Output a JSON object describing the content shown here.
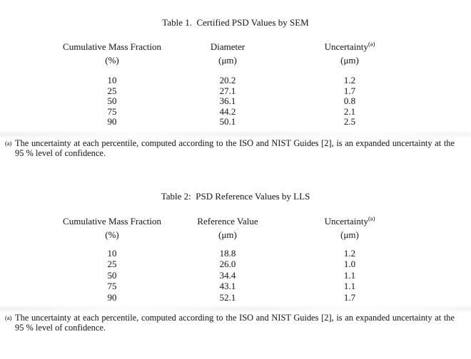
{
  "document": {
    "background": "#ffffff",
    "text_color": "#2b2b2b"
  },
  "tables": [
    {
      "title": "Table 1.  Certified PSD Values by SEM",
      "columns": [
        {
          "label": "Cumulative Mass Fraction",
          "sup": "",
          "unit": "(%)"
        },
        {
          "label": "Diameter",
          "sup": "",
          "unit": "(μm)"
        },
        {
          "label": "Uncertainty",
          "sup": "(a)",
          "unit": "(μm)"
        }
      ],
      "rows": [
        [
          "10",
          "20.2",
          "1.2"
        ],
        [
          "25",
          "27.1",
          "1.7"
        ],
        [
          "50",
          "36.1",
          "0.8"
        ],
        [
          "75",
          "44.2",
          "2.1"
        ],
        [
          "90",
          "50.1",
          "2.5"
        ]
      ],
      "footnote": {
        "marker": "(a)",
        "text": "The uncertainty at each percentile, computed according to the ISO and NIST Guides [2], is an expanded uncertainty at the 95 % level of confidence."
      }
    },
    {
      "title": "Table 2:  PSD Reference Values by LLS",
      "columns": [
        {
          "label": "Cumulative Mass Fraction",
          "sup": "",
          "unit": "(%)"
        },
        {
          "label": "Reference Value",
          "sup": "",
          "unit": "(μm)"
        },
        {
          "label": "Uncertainty",
          "sup": "(a)",
          "unit": "(μm)"
        }
      ],
      "rows": [
        [
          "10",
          "18.8",
          "1.2"
        ],
        [
          "25",
          "26.0",
          "1.0"
        ],
        [
          "50",
          "34.4",
          "1.1"
        ],
        [
          "75",
          "43.1",
          "1.1"
        ],
        [
          "90",
          "52.1",
          "1.7"
        ]
      ],
      "footnote": {
        "marker": "(a)",
        "text": "The uncertainty at each percentile, computed according to the ISO and NIST Guides [2], is an expanded uncertainty at the 95 % level of confidence."
      }
    }
  ]
}
